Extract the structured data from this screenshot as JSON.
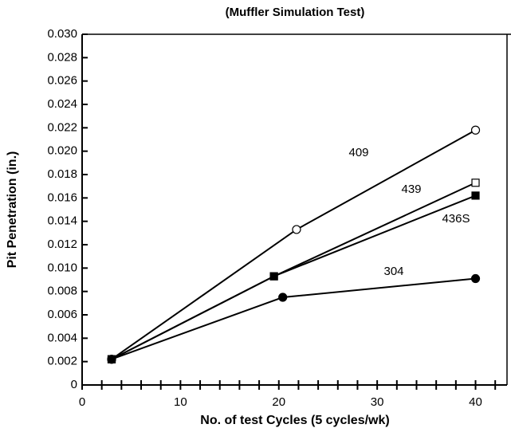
{
  "chart_data": {
    "type": "line",
    "title": "(Muffler Simulation Test)",
    "x_label": "No. of test Cycles (5 cycles/wk)",
    "y_label": "Pit Penetration (in.)",
    "xlim": [
      0,
      43.2
    ],
    "ylim": [
      0,
      0.03
    ],
    "xticks": [
      0,
      10,
      20,
      30,
      40
    ],
    "xminor": [
      2,
      4,
      6,
      8,
      12,
      14,
      16,
      18,
      22,
      24,
      26,
      28,
      32,
      34,
      36,
      38,
      42
    ],
    "yticks": [
      0,
      0.002,
      0.004,
      0.006,
      0.008,
      {
        "value": 0.01,
        "label": "0.010"
      },
      0.012,
      0.014,
      0.016,
      0.018,
      {
        "value": 0.02,
        "label": "0.020"
      },
      0.022,
      0.024,
      0.026,
      0.028,
      {
        "value": 0.03,
        "label": "0.030"
      }
    ],
    "series": [
      {
        "name": "409",
        "color": "#000000",
        "marker": "circle-open",
        "x": [
          3,
          21.8,
          40
        ],
        "values": [
          0.0022,
          0.0133,
          0.0218
        ]
      },
      {
        "name": "439",
        "color": "#000000",
        "marker": "square-open",
        "x": [
          3,
          19.5,
          40
        ],
        "values": [
          0.0022,
          0.0093,
          0.0173
        ]
      },
      {
        "name": "436S",
        "color": "#000000",
        "marker": "square-filled",
        "x": [
          3,
          19.5,
          40
        ],
        "values": [
          0.0022,
          0.0093,
          0.0162
        ]
      },
      {
        "name": "304",
        "color": "#000000",
        "marker": "circle-filled",
        "x": [
          3,
          20.4,
          40
        ],
        "values": [
          0.0022,
          0.0075,
          0.0091
        ]
      }
    ]
  }
}
